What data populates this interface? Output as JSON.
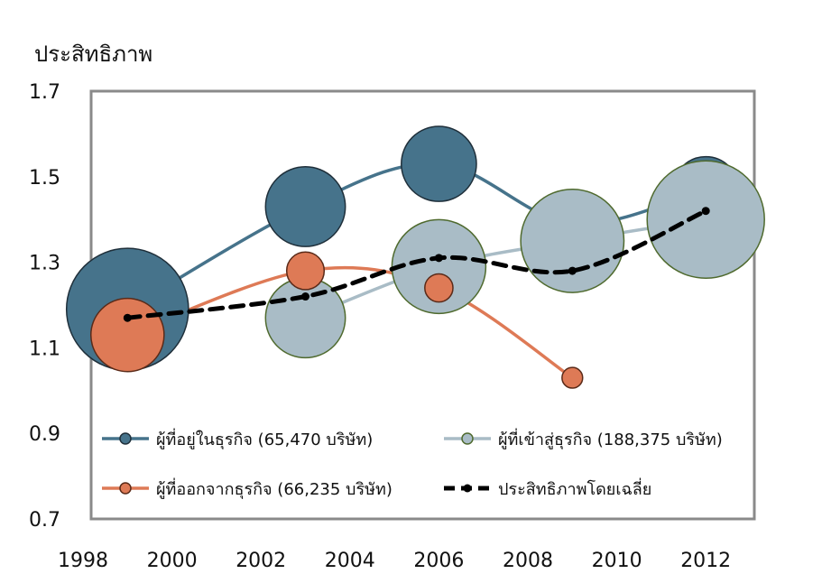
{
  "chart_data": {
    "type": "bubble-line",
    "ylabel": "ประสิทธิภาพ",
    "xlabel": "",
    "xlim": [
      1998,
      2012
    ],
    "ylim": [
      0.7,
      1.7
    ],
    "x_ticks": [
      "1998",
      "2000",
      "2002",
      "2004",
      "2006",
      "2008",
      "2010",
      "2012"
    ],
    "y_ticks": [
      "1.7",
      "1.5",
      "1.3",
      "1.1",
      "0.9",
      "0.7"
    ],
    "grid": false,
    "legend_position": "bottom inside plot",
    "series": [
      {
        "name": "ผู้ที่อยู่ในธุรกิจ (65,470 บริษัท)",
        "color": "#46738b",
        "points": [
          {
            "x": 1999,
            "y": 1.19,
            "size": 1.3
          },
          {
            "x": 2003,
            "y": 1.43,
            "size": 0.85
          },
          {
            "x": 2006,
            "y": 1.53,
            "size": 0.8
          },
          {
            "x": 2009,
            "y": 1.39,
            "size": 0.65
          },
          {
            "x": 2012,
            "y": 1.47,
            "size": 0.7
          }
        ]
      },
      {
        "name": "ผู้ที่เข้าสู่ธุรกิจ (188,375 บริษัท)",
        "color": "#a9bcc6",
        "points": [
          {
            "x": 2003,
            "y": 1.17,
            "size": 0.85
          },
          {
            "x": 2006,
            "y": 1.29,
            "size": 1.0
          },
          {
            "x": 2009,
            "y": 1.35,
            "size": 1.1
          },
          {
            "x": 2012,
            "y": 1.4,
            "size": 1.25
          }
        ]
      },
      {
        "name": "ผู้ที่ออกจากธุรกิจ (66,235 บริษัท)",
        "color": "#de7a56",
        "points": [
          {
            "x": 1999,
            "y": 1.13,
            "size": 0.78
          },
          {
            "x": 2003,
            "y": 1.28,
            "size": 0.4
          },
          {
            "x": 2006,
            "y": 1.24,
            "size": 0.3
          },
          {
            "x": 2009,
            "y": 1.03,
            "size": 0.22
          }
        ]
      },
      {
        "name": "ประสิทธิภาพโดยเฉลี่ย",
        "color": "#000000",
        "style": "dashed",
        "points": [
          {
            "x": 1999,
            "y": 1.17
          },
          {
            "x": 2003,
            "y": 1.22
          },
          {
            "x": 2006,
            "y": 1.31
          },
          {
            "x": 2009,
            "y": 1.28
          },
          {
            "x": 2012,
            "y": 1.42
          }
        ]
      }
    ]
  }
}
